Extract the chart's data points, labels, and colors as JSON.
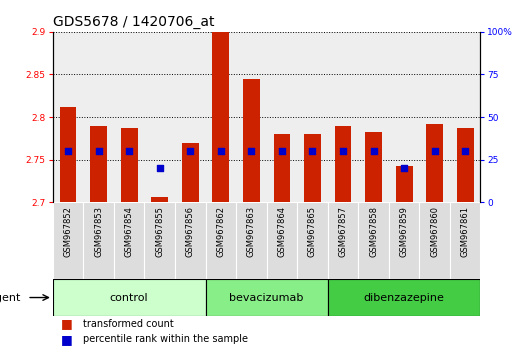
{
  "title": "GDS5678 / 1420706_at",
  "samples": [
    "GSM967852",
    "GSM967853",
    "GSM967854",
    "GSM967855",
    "GSM967856",
    "GSM967862",
    "GSM967863",
    "GSM967864",
    "GSM967865",
    "GSM967857",
    "GSM967858",
    "GSM967859",
    "GSM967860",
    "GSM967861"
  ],
  "transformed_count": [
    2.812,
    2.79,
    2.787,
    2.706,
    2.769,
    2.9,
    2.845,
    2.78,
    2.78,
    2.79,
    2.782,
    2.742,
    2.792,
    2.787
  ],
  "percentile_rank": [
    30,
    30,
    30,
    20,
    30,
    30,
    30,
    30,
    30,
    30,
    30,
    20,
    30,
    30
  ],
  "ylim_left": [
    2.7,
    2.9
  ],
  "ylim_right": [
    0,
    100
  ],
  "yticks_left": [
    2.7,
    2.75,
    2.8,
    2.85,
    2.9
  ],
  "yticks_right": [
    0,
    25,
    50,
    75,
    100
  ],
  "ytick_labels_right": [
    "0",
    "25",
    "50",
    "75",
    "100%"
  ],
  "groups": [
    {
      "name": "control",
      "indices": [
        0,
        1,
        2,
        3,
        4
      ],
      "color": "#ccffcc"
    },
    {
      "name": "bevacizumab",
      "indices": [
        5,
        6,
        7,
        8
      ],
      "color": "#88ee88"
    },
    {
      "name": "dibenzazepine",
      "indices": [
        9,
        10,
        11,
        12,
        13
      ],
      "color": "#44cc44"
    }
  ],
  "bar_color": "#cc2200",
  "dot_color": "#0000cc",
  "bar_width": 0.55,
  "baseline": 2.7,
  "agent_label": "agent",
  "legend1_label": "transformed count",
  "legend2_label": "percentile rank within the sample",
  "title_fontsize": 10,
  "tick_fontsize": 6.5,
  "label_fontsize": 8,
  "xtick_fontsize": 6,
  "group_fontsize": 8
}
